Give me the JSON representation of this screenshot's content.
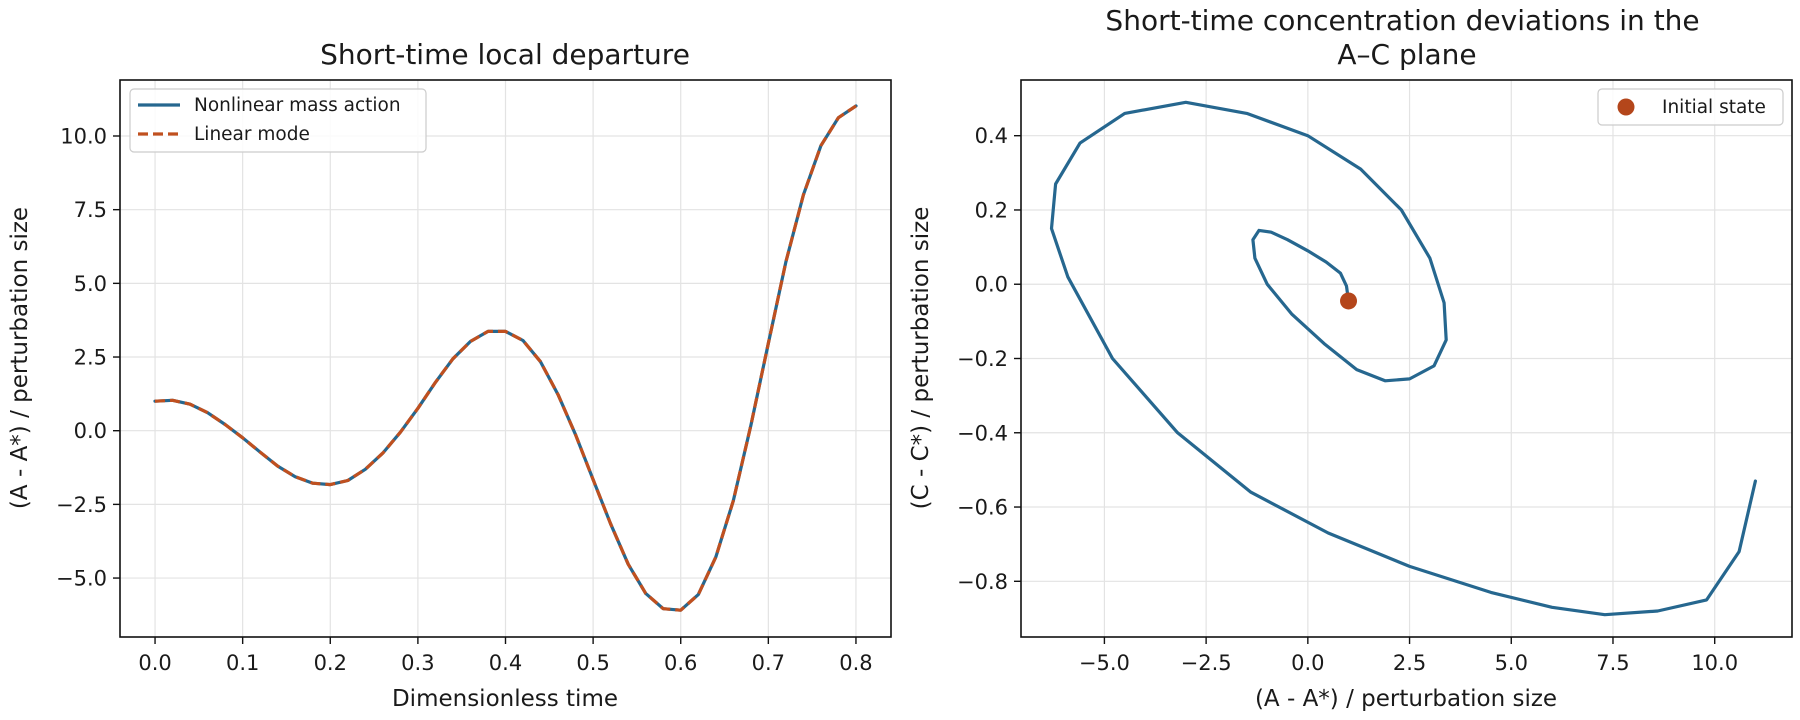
{
  "chart_data": [
    {
      "type": "line",
      "title": "Short-time local departure",
      "xlabel": "Dimensionless time",
      "ylabel": "(A - A*) / perturbation size",
      "xlim": [
        -0.04,
        0.84
      ],
      "ylim": [
        -7.0,
        11.9
      ],
      "xticks": [
        0.0,
        0.1,
        0.2,
        0.3,
        0.4,
        0.5,
        0.6,
        0.7,
        0.8
      ],
      "xtick_labels": [
        "0.0",
        "0.1",
        "0.2",
        "0.3",
        "0.4",
        "0.5",
        "0.6",
        "0.7",
        "0.8"
      ],
      "yticks": [
        -5.0,
        -2.5,
        0.0,
        2.5,
        5.0,
        7.5,
        10.0
      ],
      "ytick_labels": [
        "−5.0",
        "−2.5",
        "0.0",
        "2.5",
        "5.0",
        "7.5",
        "10.0"
      ],
      "grid": true,
      "legend_position": "top-left",
      "series": [
        {
          "name": "Nonlinear mass action",
          "color": "#26678f",
          "style": "solid",
          "x": [
            0.0,
            0.02,
            0.04,
            0.06,
            0.08,
            0.1,
            0.12,
            0.14,
            0.16,
            0.18,
            0.2,
            0.22,
            0.24,
            0.26,
            0.28,
            0.3,
            0.32,
            0.34,
            0.36,
            0.38,
            0.4,
            0.42,
            0.44,
            0.46,
            0.48,
            0.5,
            0.52,
            0.54,
            0.56,
            0.58,
            0.6,
            0.62,
            0.64,
            0.66,
            0.68,
            0.7,
            0.72,
            0.74,
            0.76,
            0.78,
            0.8
          ],
          "y": [
            1.0,
            1.03,
            0.9,
            0.61,
            0.21,
            -0.24,
            -0.73,
            -1.2,
            -1.56,
            -1.78,
            -1.83,
            -1.69,
            -1.31,
            -0.76,
            -0.05,
            0.76,
            1.64,
            2.44,
            3.03,
            3.37,
            3.37,
            3.06,
            2.34,
            1.22,
            -0.14,
            -1.66,
            -3.16,
            -4.53,
            -5.52,
            -6.04,
            -6.09,
            -5.56,
            -4.29,
            -2.38,
            0.17,
            2.96,
            5.73,
            8.0,
            9.67,
            10.62,
            11.02
          ]
        },
        {
          "name": "Linear mode",
          "color": "#c0501f",
          "style": "dashed",
          "x": [
            0.0,
            0.02,
            0.04,
            0.06,
            0.08,
            0.1,
            0.12,
            0.14,
            0.16,
            0.18,
            0.2,
            0.22,
            0.24,
            0.26,
            0.28,
            0.3,
            0.32,
            0.34,
            0.36,
            0.38,
            0.4,
            0.42,
            0.44,
            0.46,
            0.48,
            0.5,
            0.52,
            0.54,
            0.56,
            0.58,
            0.6,
            0.62,
            0.64,
            0.66,
            0.68,
            0.7,
            0.72,
            0.74,
            0.76,
            0.78,
            0.8
          ],
          "y": [
            1.0,
            1.03,
            0.9,
            0.61,
            0.21,
            -0.24,
            -0.73,
            -1.2,
            -1.56,
            -1.78,
            -1.83,
            -1.69,
            -1.31,
            -0.76,
            -0.05,
            0.76,
            1.64,
            2.44,
            3.03,
            3.37,
            3.37,
            3.06,
            2.34,
            1.22,
            -0.14,
            -1.66,
            -3.16,
            -4.53,
            -5.52,
            -6.04,
            -6.09,
            -5.56,
            -4.29,
            -2.38,
            0.17,
            2.96,
            5.73,
            8.0,
            9.67,
            10.62,
            11.02
          ]
        }
      ]
    },
    {
      "type": "line",
      "title": "Short-time concentration deviations in the\nA–C plane",
      "xlabel": "(A - A*) / perturbation size",
      "ylabel": "(C - C*) / perturbation size",
      "xlim": [
        -7.05,
        11.9
      ],
      "ylim": [
        -0.95,
        0.55
      ],
      "xticks": [
        -5.0,
        -2.5,
        0.0,
        2.5,
        5.0,
        7.5,
        10.0
      ],
      "xtick_labels": [
        "−5.0",
        "−2.5",
        "0.0",
        "2.5",
        "5.0",
        "7.5",
        "10.0"
      ],
      "yticks": [
        -0.8,
        -0.6,
        -0.4,
        -0.2,
        0.0,
        0.2,
        0.4
      ],
      "ytick_labels": [
        "−0.8",
        "−0.6",
        "−0.4",
        "−0.2",
        "0.0",
        "0.2",
        "0.4"
      ],
      "grid": true,
      "legend_position": "top-right",
      "series": [
        {
          "name": "",
          "color": "#26678f",
          "style": "solid",
          "x": [
            1.0,
            0.95,
            0.8,
            0.45,
            0.0,
            -0.5,
            -0.9,
            -1.2,
            -1.35,
            -1.3,
            -1.0,
            -0.4,
            0.4,
            1.2,
            1.9,
            2.5,
            3.1,
            3.4,
            3.35,
            3.0,
            2.3,
            1.3,
            0.0,
            -1.5,
            -3.0,
            -4.5,
            -5.6,
            -6.2,
            -6.3,
            -5.9,
            -4.8,
            -3.2,
            -1.4,
            0.5,
            2.5,
            4.5,
            6.0,
            7.3,
            8.6,
            9.8,
            10.6,
            11.0
          ],
          "y": [
            -0.045,
            -0.005,
            0.03,
            0.06,
            0.09,
            0.12,
            0.14,
            0.145,
            0.12,
            0.07,
            0.0,
            -0.08,
            -0.16,
            -0.23,
            -0.26,
            -0.255,
            -0.22,
            -0.15,
            -0.05,
            0.07,
            0.2,
            0.31,
            0.4,
            0.46,
            0.49,
            0.46,
            0.38,
            0.27,
            0.15,
            0.02,
            -0.2,
            -0.4,
            -0.56,
            -0.67,
            -0.76,
            -0.83,
            -0.87,
            -0.89,
            -0.88,
            -0.85,
            -0.72,
            -0.53
          ]
        }
      ],
      "markers": [
        {
          "name": "Initial state",
          "color": "#b4461b",
          "x": 1.0,
          "y": -0.045
        }
      ]
    }
  ]
}
